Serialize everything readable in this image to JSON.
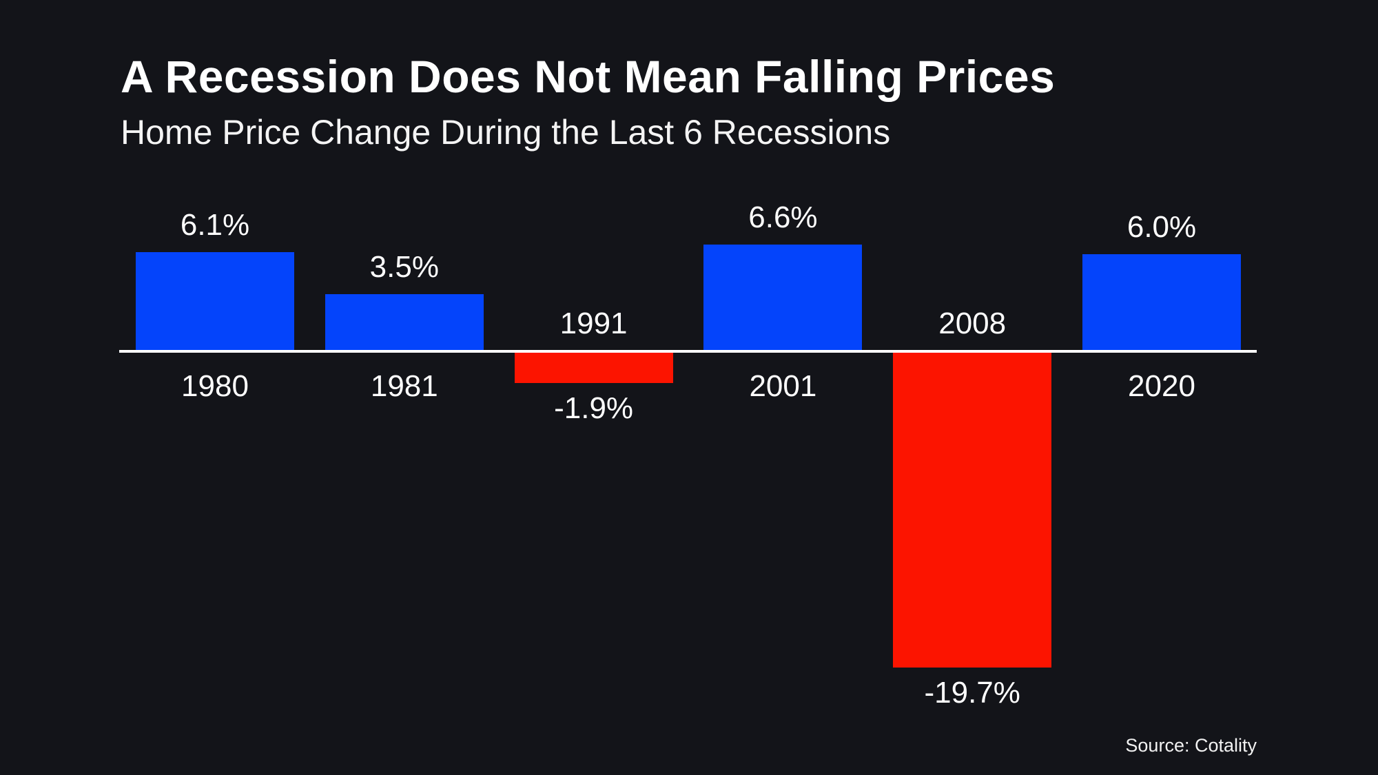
{
  "title": "A Recession Does Not Mean Falling Prices",
  "subtitle": "Home Price Change During the Last 6 Recessions",
  "source": "Source: Cotality",
  "colors": {
    "background": "#131419",
    "positive_bar": "#0444fb",
    "negative_bar": "#fc1400",
    "axis": "#ffffff",
    "text": "#ffffff"
  },
  "chart_data": {
    "type": "bar",
    "title": "A Recession Does Not Mean Falling Prices",
    "subtitle": "Home Price Change During the Last 6 Recessions",
    "categories": [
      "1980",
      "1981",
      "1991",
      "2001",
      "2008",
      "2020"
    ],
    "values": [
      6.1,
      3.5,
      -1.9,
      6.6,
      -19.7,
      6.0
    ],
    "value_labels": [
      "6.1%",
      "3.5%",
      "-1.9%",
      "6.6%",
      "-19.7%",
      "6.0%"
    ],
    "xlabel": "",
    "ylabel": "",
    "ylim": [
      -22,
      8
    ],
    "baseline": 0,
    "grid": false,
    "legend": false,
    "bar_colors": [
      "#0444fb",
      "#0444fb",
      "#fc1400",
      "#0444fb",
      "#fc1400",
      "#0444fb"
    ],
    "positive_color": "#0444fb",
    "negative_color": "#fc1400"
  }
}
